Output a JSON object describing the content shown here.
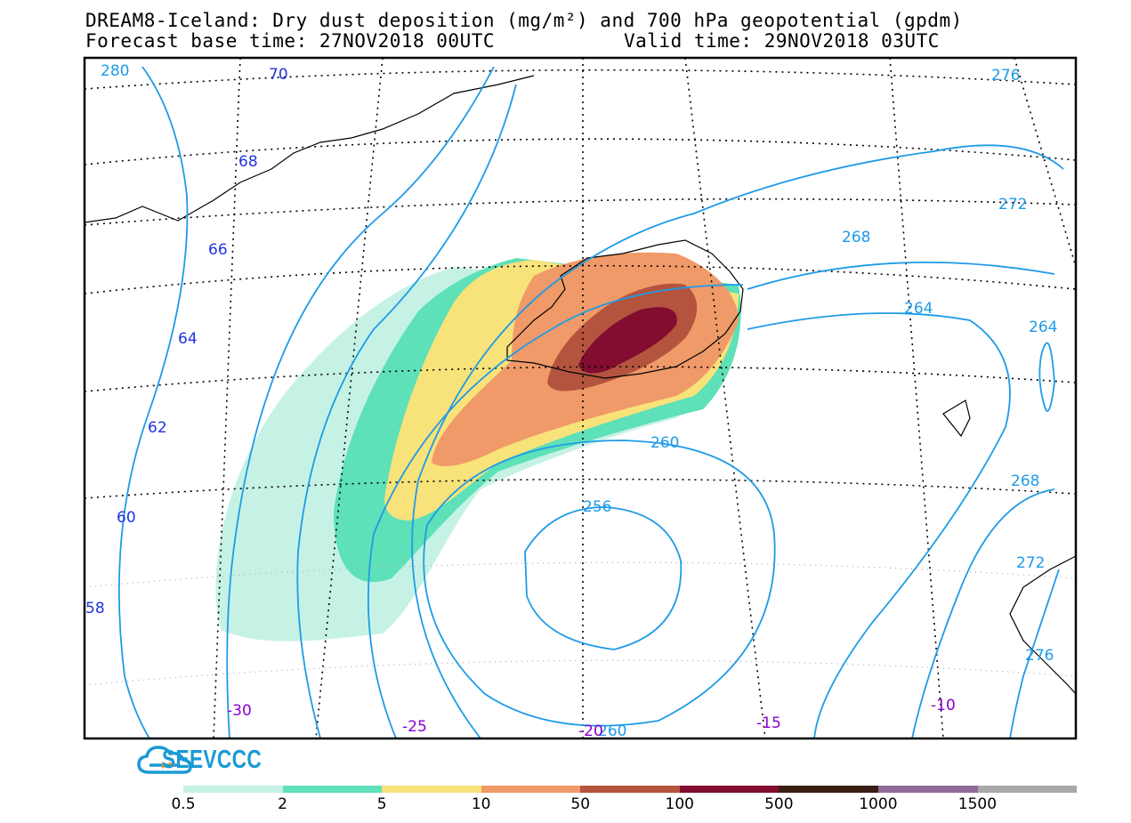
{
  "header": {
    "title": "DREAM8-Iceland: Dry dust deposition (mg/m²) and 700 hPa geopotential (gpdm)",
    "base_time": "Forecast base time: 27NOV2018 00UTC",
    "valid_time": "Valid time: 29NOV2018 03UTC"
  },
  "map": {
    "latitude_labels": [
      "70",
      "68",
      "66",
      "64",
      "62",
      "60",
      "58"
    ],
    "longitude_labels": [
      "-30",
      "-25",
      "-20",
      "-15",
      "-10"
    ],
    "geopotential_labels": [
      "280",
      "276",
      "272",
      "268",
      "264",
      "260",
      "256",
      "260",
      "264",
      "268",
      "272",
      "276"
    ],
    "colors": {
      "contour": "#1e9be8",
      "lat_label": "#2233dd",
      "lon_label": "#8800cc"
    }
  },
  "brand": {
    "name": "SEEVCCC"
  },
  "legend": {
    "ticks": [
      "0.5",
      "2",
      "5",
      "10",
      "50",
      "100",
      "500",
      "1000",
      "1500"
    ],
    "colors": [
      "#c6f2e6",
      "#5ee0b8",
      "#f8e27a",
      "#ef9a68",
      "#b4543e",
      "#820d31",
      "#3a1f14",
      "#8e6b9b",
      "#a8a8a8"
    ]
  }
}
